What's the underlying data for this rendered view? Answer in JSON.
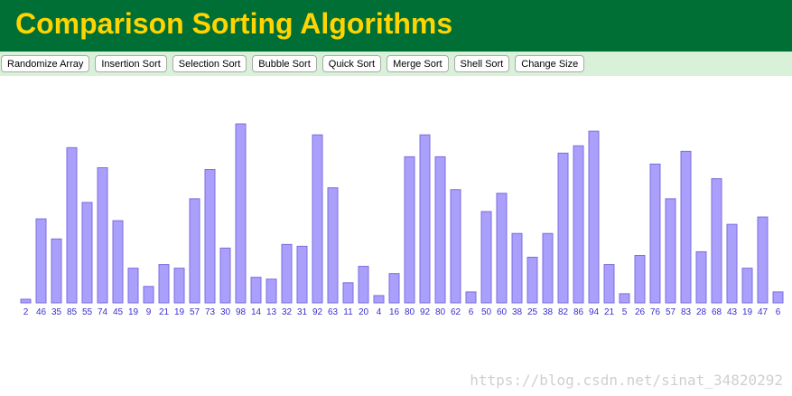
{
  "header": {
    "title": "Comparison Sorting Algorithms"
  },
  "buttons": [
    "Randomize Array",
    "Insertion Sort",
    "Selection Sort",
    "Bubble Sort",
    "Quick Sort",
    "Merge Sort",
    "Shell Sort",
    "Change Size"
  ],
  "array": {
    "values": [
      2,
      46,
      35,
      85,
      55,
      74,
      45,
      19,
      9,
      21,
      19,
      57,
      73,
      30,
      98,
      14,
      13,
      32,
      31,
      92,
      63,
      11,
      20,
      4,
      16,
      80,
      92,
      80,
      62,
      6,
      50,
      60,
      38,
      25,
      38,
      82,
      86,
      94,
      21,
      5,
      26,
      76,
      57,
      83,
      28,
      68,
      43,
      19,
      47,
      6
    ]
  },
  "watermark": "https://blog.csdn.net/sinat_34820292"
}
